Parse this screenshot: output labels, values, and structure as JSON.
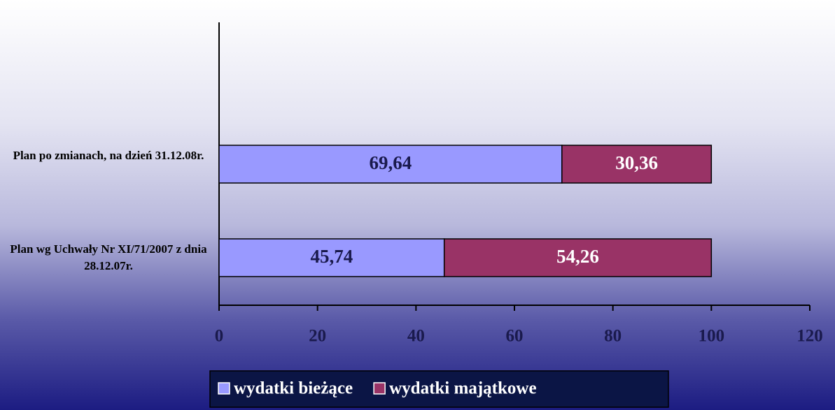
{
  "chart_data": {
    "type": "stacked_barh",
    "categories": [
      "Plan po zmianach, na dzień 31.12.08r.",
      "Plan wg Uchwały Nr XI/71/2007 z dnia 28.12.07r."
    ],
    "series": [
      {
        "name": "wydatki bieżące",
        "color": "#9999ff",
        "label_color": "#1a1a4d",
        "values": [
          69.64,
          45.74
        ],
        "value_labels": [
          "69,64",
          "45,74"
        ]
      },
      {
        "name": "wydatki majątkowe",
        "color": "#993366",
        "label_color": "#ffffff",
        "values": [
          30.36,
          54.26
        ],
        "value_labels": [
          "30,36",
          "54,26"
        ]
      }
    ],
    "xlim": [
      0,
      120
    ],
    "xticks": [
      0,
      20,
      40,
      60,
      80,
      100,
      120
    ],
    "legend": "bottom"
  }
}
